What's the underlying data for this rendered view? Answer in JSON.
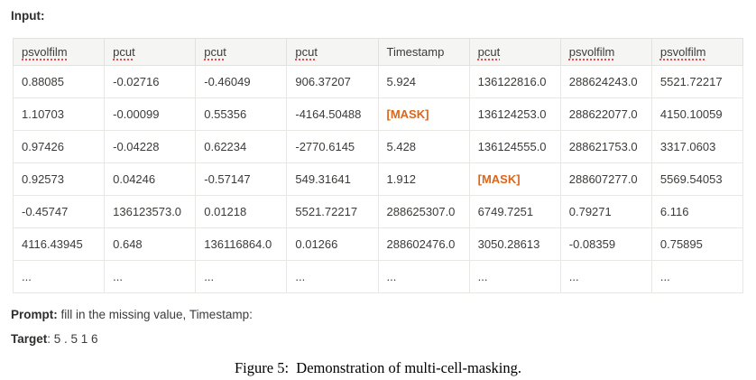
{
  "input_label": "Input:",
  "table": {
    "mask_token": "[MASK]",
    "mask_color": "#d9661c",
    "header_bg": "#f5f5f4",
    "spellcheck_color": "#e5484d",
    "columns": [
      {
        "label": "psvolfilm",
        "misspelled": true
      },
      {
        "label": "pcut",
        "misspelled": true
      },
      {
        "label": "pcut",
        "misspelled": true
      },
      {
        "label": "pcut",
        "misspelled": true
      },
      {
        "label": "Timestamp",
        "misspelled": false
      },
      {
        "label": "pcut",
        "misspelled": true
      },
      {
        "label": "psvolfilm",
        "misspelled": true
      },
      {
        "label": "psvolfilm",
        "misspelled": true
      }
    ],
    "rows": [
      [
        "0.88085",
        "-0.02716",
        "-0.46049",
        "906.37207",
        "5.924",
        "136122816.0",
        "288624243.0",
        "5521.72217"
      ],
      [
        "1.10703",
        "-0.00099",
        "0.55356",
        "-4164.50488",
        "[MASK]",
        "136124253.0",
        "288622077.0",
        "4150.10059"
      ],
      [
        "0.97426",
        "-0.04228",
        "0.62234",
        "-2770.6145",
        "5.428",
        "136124555.0",
        "288621753.0",
        "3317.0603"
      ],
      [
        "0.92573",
        "0.04246",
        "-0.57147",
        "549.31641",
        "1.912",
        "[MASK]",
        "288607277.0",
        "5569.54053"
      ],
      [
        "-0.45747",
        "136123573.0",
        "0.01218",
        "5521.72217",
        "288625307.0",
        "6749.7251",
        "0.79271",
        "6.116"
      ],
      [
        "4116.43945",
        "0.648",
        "136116864.0",
        "0.01266",
        "288602476.0",
        "3050.28613",
        "-0.08359",
        "0.75895"
      ],
      [
        "...",
        "...",
        "...",
        "...",
        "...",
        "...",
        "...",
        "..."
      ]
    ]
  },
  "prompt": {
    "label": "Prompt:",
    "text": " fill in the missing value, Timestamp:"
  },
  "target": {
    "label": "Target",
    "text": ": 5 . 5 1 6"
  },
  "caption": "Figure 5:  Demonstration of multi-cell-masking."
}
